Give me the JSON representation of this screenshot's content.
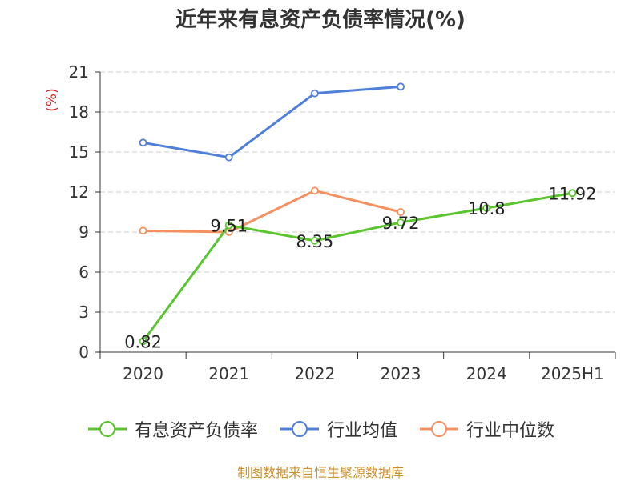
{
  "chart_data": {
    "type": "line",
    "title": "近年来有息资产负债率情况(%)",
    "ylabel": "(%)",
    "xlabel": "",
    "categories": [
      "2020",
      "2021",
      "2022",
      "2023",
      "2024",
      "2025H1"
    ],
    "ylim": [
      0,
      21
    ],
    "yticks": [
      0,
      3,
      6,
      9,
      12,
      15,
      18,
      21
    ],
    "grid": "horizontal-dashed",
    "legend_position": "bottom",
    "series": [
      {
        "name": "有息资产负债率",
        "color": "#5ac52e",
        "values": [
          0.82,
          9.51,
          8.35,
          9.72,
          10.8,
          11.92
        ],
        "labels": [
          "0.82",
          "9.51",
          "8.35",
          "9.72",
          "10.8",
          "11.92"
        ]
      },
      {
        "name": "行业均值",
        "color": "#4f7fd8",
        "values": [
          15.7,
          14.6,
          19.4,
          19.9,
          null,
          null
        ]
      },
      {
        "name": "行业中位数",
        "color": "#f59060",
        "values": [
          9.1,
          9.0,
          12.1,
          10.5,
          null,
          null
        ]
      }
    ]
  },
  "source": "制图数据来自恒生聚源数据库"
}
